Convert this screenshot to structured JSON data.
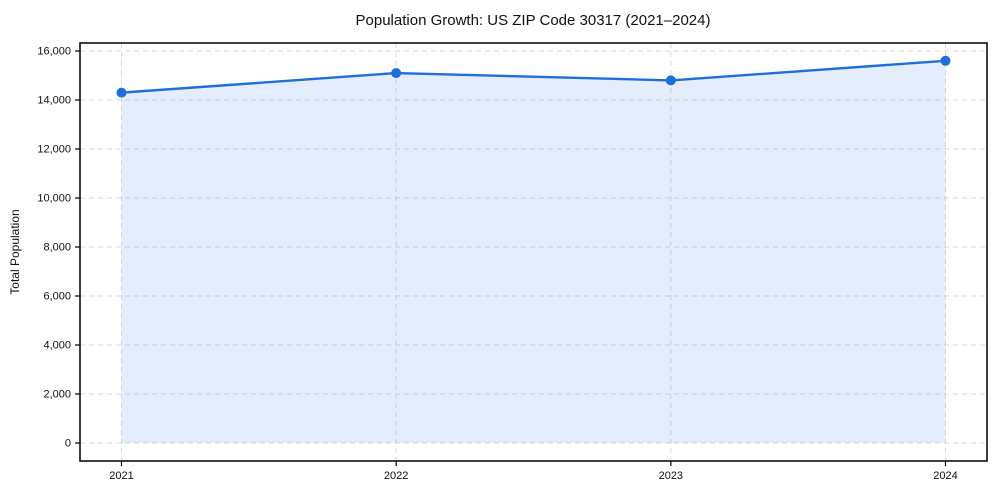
{
  "chart_data": {
    "type": "line",
    "title": "Population Growth: US ZIP Code 30317 (2021–2024)",
    "xlabel": "",
    "ylabel": "Total Population",
    "categories": [
      "2021",
      "2022",
      "2023",
      "2024"
    ],
    "series": [
      {
        "name": "Total Population",
        "values": [
          14300,
          15100,
          14800,
          15600
        ]
      }
    ],
    "ylim": [
      0,
      16000
    ],
    "ytick_values": [
      0,
      2000,
      4000,
      6000,
      8000,
      10000,
      12000,
      14000,
      16000
    ],
    "ytick_labels": [
      "0",
      "2,000",
      "4,000",
      "6,000",
      "8,000",
      "10,000",
      "12,000",
      "14,000",
      "16,000"
    ],
    "grid": "dashed-both-axes",
    "legend": "none",
    "marker": "circle",
    "area_fill": true,
    "line_color": "#1f6edd",
    "fill_color": "rgba(31, 110, 221, 0.12)",
    "grid_color": "#d9d9d9",
    "axis_color": "#000000",
    "text_color": "#111111",
    "background_color": "#ffffff"
  }
}
